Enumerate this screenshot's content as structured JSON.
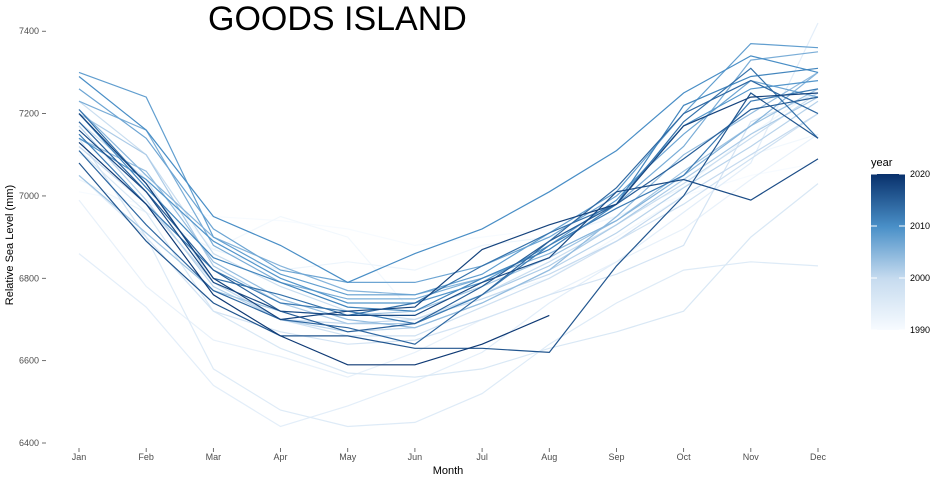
{
  "chart_data": {
    "type": "line",
    "title": "GOODS ISLAND",
    "xlabel": "Month",
    "ylabel": "Relative Sea Level (mm)",
    "categories": [
      "Jan",
      "Feb",
      "Mar",
      "Apr",
      "May",
      "Jun",
      "Jul",
      "Aug",
      "Sep",
      "Oct",
      "Nov",
      "Dec"
    ],
    "ylim": [
      6400,
      7420
    ],
    "yticks": [
      6400,
      6600,
      6800,
      7000,
      7200,
      7400
    ],
    "grid": false,
    "legend": {
      "title": "year",
      "position": "right",
      "type": "colorbar",
      "range": [
        1990,
        2020
      ],
      "ticks": [
        1990,
        2000,
        2010,
        2020
      ],
      "color_low": "#f7fbff",
      "color_high": "#08306b"
    },
    "series": [
      {
        "year": 1990,
        "values": [
          7010,
          6980,
          6950,
          6940,
          6920,
          6880,
          6900,
          6920,
          6950,
          7000,
          7050,
          7080
        ]
      },
      {
        "year": 1991,
        "values": [
          7100,
          7050,
          6870,
          6950,
          6900,
          6710,
          6750,
          6800,
          6900,
          7000,
          7100,
          7150
        ]
      },
      {
        "year": 1992,
        "values": [
          7040,
          6960,
          6870,
          6820,
          6840,
          6820,
          6880,
          6900,
          6950,
          7020,
          7150,
          7260
        ]
      },
      {
        "year": 1993,
        "values": [
          6990,
          6780,
          6650,
          6610,
          6560,
          6620,
          6700,
          6760,
          6840,
          6920,
          7040,
          7150
        ]
      },
      {
        "year": 1994,
        "values": [
          6860,
          6730,
          6540,
          6440,
          6490,
          6550,
          6620,
          6740,
          6840,
          6960,
          7080,
          7420
        ]
      },
      {
        "year": 1995,
        "values": [
          7050,
          6900,
          6580,
          6480,
          6440,
          6450,
          6520,
          6640,
          6740,
          6820,
          6840,
          6830
        ]
      },
      {
        "year": 1996,
        "values": [
          7110,
          6960,
          6720,
          6630,
          6570,
          6560,
          6580,
          6630,
          6670,
          6720,
          6900,
          7030
        ]
      },
      {
        "year": 1997,
        "values": [
          7140,
          6900,
          6720,
          6670,
          6640,
          6650,
          6700,
          6760,
          6810,
          6880,
          7180,
          7250
        ]
      },
      {
        "year": 1998,
        "values": [
          7180,
          7040,
          6790,
          6700,
          6660,
          6660,
          6730,
          6800,
          6890,
          6980,
          7090,
          7200
        ]
      },
      {
        "year": 1999,
        "values": [
          7230,
          7100,
          6860,
          6780,
          6720,
          6700,
          6760,
          6840,
          6930,
          7030,
          7140,
          7250
        ]
      },
      {
        "year": 2000,
        "values": [
          7120,
          6980,
          6790,
          6700,
          6690,
          6700,
          6750,
          6810,
          6890,
          7000,
          7100,
          7200
        ]
      },
      {
        "year": 2001,
        "values": [
          7170,
          6990,
          6780,
          6700,
          6670,
          6680,
          6740,
          6820,
          6910,
          7020,
          7120,
          7230
        ]
      },
      {
        "year": 2002,
        "values": [
          7200,
          7100,
          6830,
          6740,
          6690,
          6690,
          6760,
          6830,
          6930,
          7040,
          7150,
          7240
        ]
      },
      {
        "year": 2003,
        "values": [
          7050,
          6910,
          6770,
          6720,
          6710,
          6720,
          6780,
          6850,
          6940,
          7060,
          7170,
          7260
        ]
      },
      {
        "year": 2004,
        "values": [
          7140,
          7060,
          6840,
          6750,
          6700,
          6680,
          6740,
          6820,
          6950,
          7100,
          7200,
          7300
        ]
      },
      {
        "year": 2005,
        "values": [
          7210,
          7050,
          6900,
          6830,
          6770,
          6760,
          6800,
          6860,
          6940,
          7050,
          7170,
          7300
        ]
      },
      {
        "year": 2006,
        "values": [
          7230,
          7160,
          6880,
          6790,
          6750,
          6750,
          6800,
          6870,
          6980,
          7120,
          7330,
          7350
        ]
      },
      {
        "year": 2007,
        "values": [
          7260,
          7140,
          6920,
          6820,
          6790,
          6790,
          6830,
          6900,
          7000,
          7150,
          7280,
          7240
        ]
      },
      {
        "year": 2008,
        "values": [
          7300,
          7240,
          6900,
          6810,
          6760,
          6760,
          6810,
          6910,
          7010,
          7200,
          7370,
          7360
        ]
      },
      {
        "year": 2009,
        "values": [
          7140,
          7040,
          6890,
          6800,
          6740,
          6740,
          6790,
          6880,
          6990,
          7170,
          7260,
          7280
        ]
      },
      {
        "year": 2010,
        "values": [
          7290,
          7160,
          6950,
          6880,
          6790,
          6860,
          6920,
          7010,
          7110,
          7250,
          7340,
          7300
        ]
      },
      {
        "year": 2011,
        "values": [
          7200,
          7020,
          6850,
          6790,
          6730,
          6720,
          6800,
          6870,
          6980,
          7220,
          7290,
          7310
        ]
      },
      {
        "year": 2012,
        "values": [
          7150,
          6980,
          6820,
          6740,
          6720,
          6690,
          6760,
          6880,
          6970,
          7050,
          7230,
          7260
        ]
      },
      {
        "year": 2013,
        "values": [
          7210,
          7030,
          6800,
          6760,
          6710,
          6740,
          6830,
          6910,
          6980,
          7180,
          7310,
          7140
        ]
      },
      {
        "year": 2014,
        "values": [
          7110,
          6930,
          6770,
          6700,
          6680,
          6640,
          6760,
          6890,
          7020,
          7200,
          7280,
          7200
        ]
      },
      {
        "year": 2015,
        "values": [
          7180,
          7010,
          6820,
          6720,
          6670,
          6690,
          6780,
          6890,
          6980,
          7090,
          7210,
          7240
        ]
      },
      {
        "year": 2016,
        "values": [
          7080,
          6890,
          6740,
          6660,
          6660,
          6630,
          6630,
          6620,
          6830,
          7000,
          7250,
          7140
        ]
      },
      {
        "year": 2017,
        "values": [
          7160,
          7010,
          6790,
          6720,
          6710,
          6710,
          6790,
          6850,
          7010,
          7040,
          6990,
          7090
        ]
      },
      {
        "year": 2018,
        "values": [
          7200,
          7030,
          6800,
          6700,
          6720,
          6730,
          6870,
          6930,
          6980,
          7170,
          7240,
          7250
        ]
      },
      {
        "year": 2019,
        "values": [
          7130,
          6980,
          6760,
          6660,
          6590,
          6590,
          6640,
          6710,
          null,
          null,
          null,
          null
        ]
      }
    ]
  }
}
